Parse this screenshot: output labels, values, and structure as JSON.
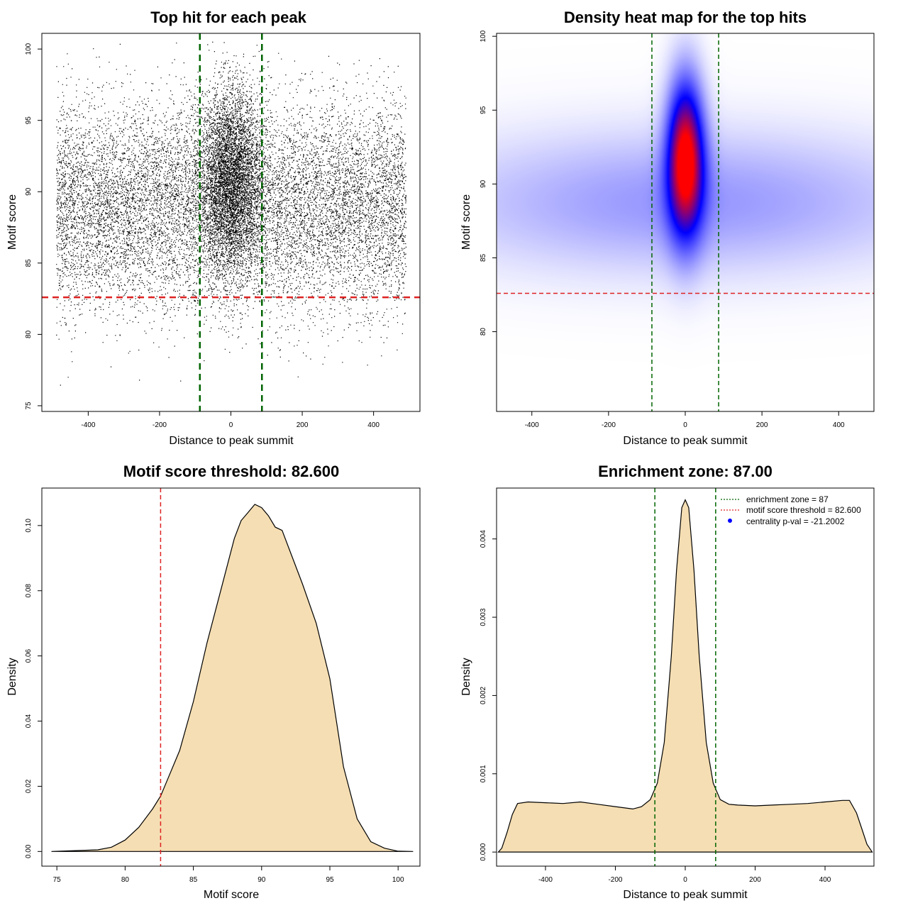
{
  "chart_data": [
    {
      "id": "p1",
      "type": "scatter",
      "title": "Top hit for each peak",
      "xlabel": "Distance to peak summit",
      "ylabel": "Motif score",
      "xlim": [
        -530,
        530
      ],
      "ylim": [
        74.6,
        101.1
      ],
      "xticks": [
        -400,
        -200,
        0,
        200,
        400
      ],
      "yticks": [
        75,
        80,
        85,
        90,
        95,
        100
      ],
      "points_summary": {
        "n_background": 16000,
        "background_x_range": [
          -490,
          490
        ],
        "background_score_mean": 89.0,
        "background_score_sd": 3.6,
        "n_central": 14000,
        "central_x_sd": 42,
        "central_score_mean": 90.8,
        "central_score_sd": 3.2
      },
      "vlines": [
        -87,
        87
      ],
      "hline": 82.6,
      "vline_color": "#006400",
      "hline_color": "#dd2222"
    },
    {
      "id": "p2",
      "type": "heatmap",
      "title": "Density heat map for the top hits",
      "xlabel": "Distance to peak summit",
      "ylabel": "Motif score",
      "xlim": [
        -492,
        492
      ],
      "ylim": [
        74.6,
        100.2
      ],
      "xticks": [
        -400,
        -200,
        0,
        200,
        400
      ],
      "yticks": [
        80,
        85,
        90,
        95,
        100
      ],
      "colors": [
        "#ffffff",
        "#a0a0ff",
        "#0000ff",
        "#ff0000"
      ],
      "density_components": [
        {
          "x_center": 0,
          "x_sd": 33,
          "score_center": 91.8,
          "score_sd": 3.6,
          "weight": 1.0
        },
        {
          "x_center": 0,
          "x_sd": 460,
          "score_center": 88.8,
          "score_sd": 3.3,
          "weight": 0.22
        }
      ],
      "vlines": [
        -87,
        87
      ],
      "hline": 82.6,
      "vline_color": "#006400",
      "hline_color": "#dd2222"
    },
    {
      "id": "p3",
      "type": "area",
      "title": "Motif score threshold: 82.600",
      "xlabel": "Motif score",
      "ylabel": "Density",
      "xlim": [
        73.9,
        101.6
      ],
      "ylim": [
        -0.0045,
        0.1115
      ],
      "xticks": [
        75,
        80,
        85,
        90,
        95,
        100
      ],
      "yticks": [
        0.0,
        0.02,
        0.04,
        0.06,
        0.08,
        0.1
      ],
      "ytick_labels": [
        "0.00",
        "0.02",
        "0.04",
        "0.06",
        "0.08",
        "0.10"
      ],
      "curve": {
        "x": [
          74.6,
          76,
          78,
          79,
          80,
          81,
          82,
          82.6,
          83,
          84,
          85,
          86,
          87,
          88,
          88.5,
          89,
          89.5,
          90,
          90.5,
          91,
          91.5,
          92,
          93,
          94,
          95,
          96,
          97,
          98,
          99,
          100,
          101.1
        ],
        "y": [
          0.0,
          0.0002,
          0.0005,
          0.0013,
          0.0035,
          0.0074,
          0.013,
          0.017,
          0.021,
          0.031,
          0.046,
          0.064,
          0.08,
          0.096,
          0.1015,
          0.104,
          0.1065,
          0.1055,
          0.103,
          0.0995,
          0.0985,
          0.093,
          0.082,
          0.07,
          0.053,
          0.026,
          0.01,
          0.003,
          0.001,
          0.0001,
          0.0
        ],
        "fill": "#f5deb3"
      },
      "vline": 82.6,
      "vline_color": "#dd2222"
    },
    {
      "id": "p4",
      "type": "area",
      "title": "Enrichment zone: 87.00",
      "xlabel": "Distance to peak summit",
      "ylabel": "Density",
      "xlim": [
        -540,
        540
      ],
      "ylim": [
        -0.00018,
        0.00465
      ],
      "xticks": [
        -400,
        -200,
        0,
        200,
        400
      ],
      "yticks": [
        0.0,
        0.001,
        0.002,
        0.003,
        0.004
      ],
      "ytick_labels": [
        "0.000",
        "0.001",
        "0.002",
        "0.003",
        "0.004"
      ],
      "curve": {
        "x": [
          -535,
          -525,
          -510,
          -495,
          -480,
          -450,
          -400,
          -350,
          -300,
          -250,
          -200,
          -150,
          -125,
          -100,
          -80,
          -60,
          -40,
          -25,
          -10,
          0,
          10,
          25,
          40,
          60,
          80,
          100,
          125,
          150,
          200,
          250,
          300,
          350,
          400,
          450,
          470,
          490,
          505,
          520,
          535
        ],
        "y": [
          0.0,
          5e-05,
          0.00025,
          0.00048,
          0.00062,
          0.00064,
          0.00063,
          0.00062,
          0.00064,
          0.00061,
          0.00058,
          0.00055,
          0.00058,
          0.00067,
          0.00088,
          0.0014,
          0.0025,
          0.0036,
          0.0044,
          0.0045,
          0.0044,
          0.0036,
          0.0025,
          0.0014,
          0.00088,
          0.00067,
          0.00061,
          0.0006,
          0.00059,
          0.0006,
          0.00061,
          0.00062,
          0.00064,
          0.00066,
          0.00066,
          0.0005,
          0.0003,
          0.0001,
          0.0
        ],
        "fill": "#f5deb3"
      },
      "vlines": [
        -87,
        87
      ],
      "vline_color": "#006400",
      "legend": {
        "position": "top-right",
        "items": [
          {
            "label": "enrichment zone = 87",
            "color": "#006400",
            "kind": "line"
          },
          {
            "label": "motif score threshold = 82.600",
            "color": "#dd2222",
            "kind": "line"
          },
          {
            "label": "centrality p-val = -21.2002",
            "color": "#0000ff",
            "kind": "point"
          }
        ]
      }
    }
  ]
}
